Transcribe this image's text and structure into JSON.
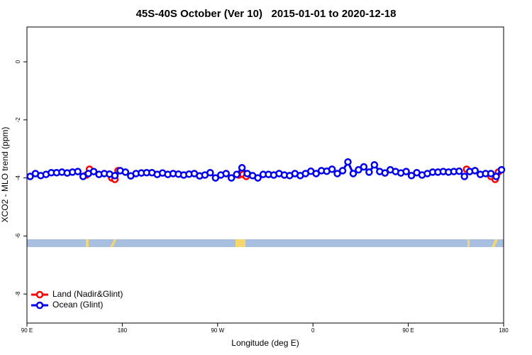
{
  "chart_data": {
    "type": "line",
    "title": "45S-40S October (Ver 10)   2015-01-01 to 2020-12-18",
    "x_label": "Longitude (deg E)",
    "y_label": "XCO2 - MLO trend (ppm)",
    "xlim": [
      90,
      540
    ],
    "xticks": [
      {
        "value": 90,
        "label": "90 E"
      },
      {
        "value": 180,
        "label": "180"
      },
      {
        "value": 270,
        "label": "90 W"
      },
      {
        "value": 360,
        "label": "0"
      },
      {
        "value": 450,
        "label": "90 E"
      },
      {
        "value": 540,
        "label": "180"
      }
    ],
    "ylim": [
      -9,
      1.2
    ],
    "yticks": [
      0,
      -2,
      -4,
      -6,
      -8
    ],
    "legend": "bottomleft",
    "series": [
      {
        "name": "Land (Nadir&Glint)",
        "color": "#ff0000",
        "x": [
          146,
          149,
          null,
          170,
          173,
          176,
          null,
          290,
          294,
          297,
          null,
          505,
          508,
          null,
          528,
          532,
          535
        ],
        "values": [
          -3.9,
          -3.7,
          null,
          -4.0,
          -4.05,
          -3.75,
          null,
          -3.9,
          -3.88,
          -3.95,
          null,
          -3.7,
          -3.78,
          null,
          -3.95,
          -4.05,
          -3.8
        ]
      },
      {
        "name": "Ocean (Glint)",
        "color": "#0000ee",
        "x": [
          93,
          98,
          103,
          108,
          113,
          118,
          123,
          128,
          133,
          138,
          143,
          148,
          153,
          158,
          163,
          168,
          173,
          178,
          183,
          188,
          193,
          198,
          203,
          208,
          213,
          218,
          223,
          228,
          233,
          238,
          243,
          248,
          253,
          258,
          263,
          268,
          273,
          278,
          283,
          288,
          293,
          298,
          303,
          308,
          313,
          318,
          323,
          328,
          333,
          338,
          343,
          348,
          353,
          358,
          363,
          368,
          373,
          378,
          383,
          388,
          393,
          398,
          403,
          408,
          413,
          418,
          423,
          428,
          433,
          438,
          443,
          448,
          453,
          458,
          463,
          468,
          473,
          478,
          483,
          488,
          493,
          498,
          503,
          508,
          513,
          518,
          523,
          528,
          533,
          538
        ],
        "values": [
          -3.95,
          -3.85,
          -3.92,
          -3.88,
          -3.82,
          -3.82,
          -3.8,
          -3.83,
          -3.8,
          -3.78,
          -3.95,
          -3.85,
          -3.78,
          -3.88,
          -3.85,
          -3.87,
          -3.92,
          -3.75,
          -3.8,
          -3.93,
          -3.85,
          -3.83,
          -3.82,
          -3.82,
          -3.88,
          -3.83,
          -3.88,
          -3.85,
          -3.87,
          -3.9,
          -3.87,
          -3.85,
          -3.93,
          -3.9,
          -3.82,
          -4.0,
          -3.9,
          -3.85,
          -4.0,
          -3.88,
          -3.65,
          -3.85,
          -3.92,
          -4.0,
          -3.88,
          -3.88,
          -3.9,
          -3.85,
          -3.9,
          -3.92,
          -3.85,
          -3.92,
          -3.85,
          -3.77,
          -3.85,
          -3.75,
          -3.77,
          -3.7,
          -3.85,
          -3.75,
          -3.45,
          -3.85,
          -3.72,
          -3.62,
          -3.8,
          -3.55,
          -3.78,
          -3.83,
          -3.72,
          -3.78,
          -3.83,
          -3.78,
          -3.92,
          -3.82,
          -3.9,
          -3.85,
          -3.8,
          -3.8,
          -3.78,
          -3.8,
          -3.78,
          -3.77,
          -3.95,
          -3.78,
          -3.75,
          -3.88,
          -3.85,
          -3.85,
          -3.95,
          -3.72
        ]
      }
    ]
  }
}
